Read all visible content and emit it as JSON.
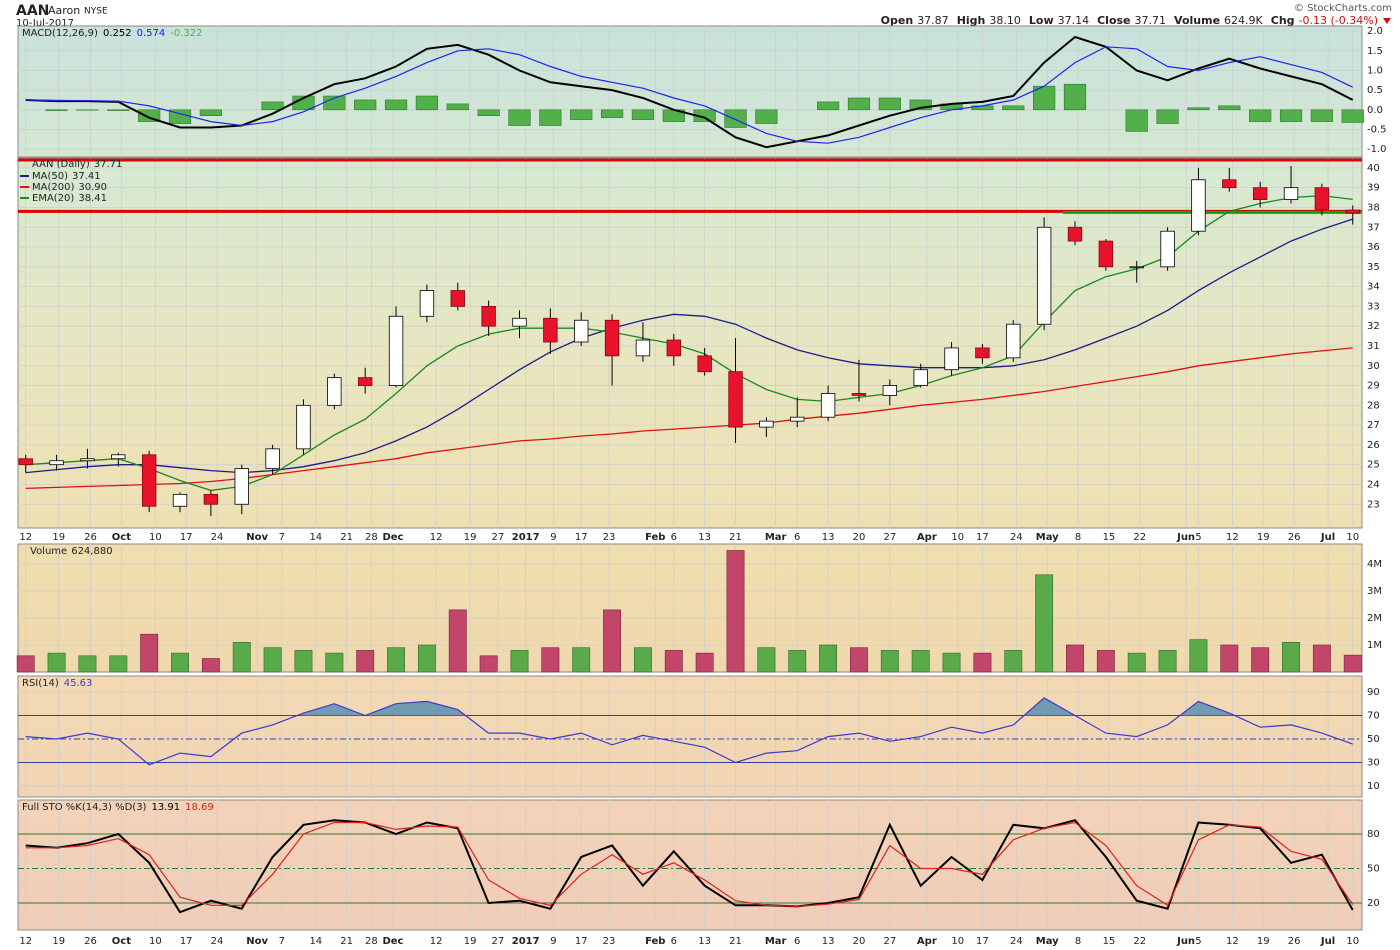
{
  "header": {
    "symbol": "AAN",
    "name": "Aaron",
    "exchange": "NYSE",
    "date": "10-Jul-2017",
    "source": "© StockCharts.com",
    "quote": [
      {
        "label": "Open",
        "value": "37.87"
      },
      {
        "label": "High",
        "value": "38.10"
      },
      {
        "label": "Low",
        "value": "37.14"
      },
      {
        "label": "Close",
        "value": "37.71"
      },
      {
        "label": "Volume",
        "value": "624.9K"
      },
      {
        "label": "Chg",
        "value": "-0.13 (-0.34%)"
      }
    ]
  },
  "x_axis": {
    "x": [
      0,
      1,
      2,
      3,
      4,
      5,
      6,
      7,
      8,
      9,
      10,
      11,
      12,
      13,
      14,
      15,
      16,
      17,
      18,
      19,
      20,
      21,
      22,
      23,
      24,
      25,
      26,
      27,
      28,
      29,
      30,
      31,
      32,
      33,
      34,
      35,
      36,
      37,
      38,
      39,
      40,
      41,
      42,
      43
    ],
    "xlim": [
      -0.25,
      43.3
    ],
    "xticks": [
      {
        "value": 0,
        "label": "12"
      },
      {
        "value": 1.07,
        "label": "19"
      },
      {
        "value": 2.1,
        "label": "26"
      },
      {
        "value": 3.1,
        "label": "Oct"
      },
      {
        "value": 4.2,
        "label": "10"
      },
      {
        "value": 5.2,
        "label": "17"
      },
      {
        "value": 6.2,
        "label": "24"
      },
      {
        "value": 7.5,
        "label": "Nov"
      },
      {
        "value": 8.3,
        "label": "7"
      },
      {
        "value": 9.4,
        "label": "14"
      },
      {
        "value": 10.4,
        "label": "21"
      },
      {
        "value": 11.2,
        "label": "28"
      },
      {
        "value": 11.9,
        "label": "Dec"
      },
      {
        "value": 13.3,
        "label": "12"
      },
      {
        "value": 14.4,
        "label": "19"
      },
      {
        "value": 15.3,
        "label": "27"
      },
      {
        "value": 16.2,
        "label": "2017"
      },
      {
        "value": 17.1,
        "label": "9"
      },
      {
        "value": 18.0,
        "label": "17"
      },
      {
        "value": 18.9,
        "label": "23"
      },
      {
        "value": 20.4,
        "label": "Feb"
      },
      {
        "value": 21.0,
        "label": "6"
      },
      {
        "value": 22.0,
        "label": "13"
      },
      {
        "value": 23.0,
        "label": "21"
      },
      {
        "value": 24.3,
        "label": "Mar"
      },
      {
        "value": 25.0,
        "label": "6"
      },
      {
        "value": 26.0,
        "label": "13"
      },
      {
        "value": 27.0,
        "label": "20"
      },
      {
        "value": 28.0,
        "label": "27"
      },
      {
        "value": 29.2,
        "label": "Apr"
      },
      {
        "value": 30.2,
        "label": "10"
      },
      {
        "value": 31.0,
        "label": "17"
      },
      {
        "value": 32.1,
        "label": "24"
      },
      {
        "value": 33.1,
        "label": "May"
      },
      {
        "value": 34.1,
        "label": "8"
      },
      {
        "value": 35.1,
        "label": "15"
      },
      {
        "value": 36.1,
        "label": "22"
      },
      {
        "value": 37.6,
        "label": "Jun"
      },
      {
        "value": 38.0,
        "label": "5"
      },
      {
        "value": 39.1,
        "label": "12"
      },
      {
        "value": 40.1,
        "label": "19"
      },
      {
        "value": 41.1,
        "label": "26"
      },
      {
        "value": 42.2,
        "label": "Jul"
      },
      {
        "value": 43.0,
        "label": "10"
      }
    ]
  },
  "chart_data": [
    {
      "type": "line",
      "title": "MACD(12,26,9)",
      "ylim": [
        -1.2,
        2.13
      ],
      "yticks": [
        {
          "value": -1,
          "label": "-1.0"
        },
        -0.5,
        {
          "value": 0,
          "label": "0.0"
        },
        0.5,
        {
          "value": 1,
          "label": "1.0"
        },
        1.5,
        {
          "value": 2,
          "label": "2.0"
        }
      ],
      "series": [
        {
          "color": "#000000",
          "values": [
            0.25,
            0.22,
            0.22,
            0.2,
            -0.2,
            -0.45,
            -0.45,
            -0.4,
            -0.1,
            0.3,
            0.65,
            0.8,
            1.1,
            1.55,
            1.65,
            1.4,
            1.0,
            0.7,
            0.6,
            0.5,
            0.3,
            0.0,
            -0.2,
            -0.7,
            -0.95,
            -0.8,
            -0.65,
            -0.4,
            -0.15,
            0.05,
            0.15,
            0.2,
            0.35,
            1.2,
            1.85,
            1.6,
            1.0,
            0.75,
            1.05,
            1.3,
            1.05,
            0.85,
            0.65,
            0.252
          ]
        },
        {
          "color": "#2222ee",
          "values": [
            0.25,
            0.24,
            0.23,
            0.22,
            0.1,
            -0.1,
            -0.3,
            -0.4,
            -0.3,
            -0.05,
            0.3,
            0.55,
            0.85,
            1.2,
            1.5,
            1.55,
            1.4,
            1.1,
            0.85,
            0.7,
            0.55,
            0.3,
            0.1,
            -0.25,
            -0.6,
            -0.8,
            -0.85,
            -0.7,
            -0.45,
            -0.2,
            0.0,
            0.1,
            0.25,
            0.6,
            1.2,
            1.6,
            1.55,
            1.1,
            1.0,
            1.2,
            1.35,
            1.15,
            0.95,
            0.574
          ]
        },
        {
          "color": "#52b04a",
          "style": "bar",
          "values": [
            0,
            -0.02,
            -0.01,
            -0.02,
            -0.3,
            -0.35,
            -0.15,
            0,
            0.2,
            0.35,
            0.35,
            0.25,
            0.25,
            0.35,
            0.15,
            -0.15,
            -0.4,
            -0.4,
            -0.25,
            -0.2,
            -0.25,
            -0.3,
            -0.3,
            -0.45,
            -0.35,
            0,
            0.2,
            0.3,
            0.3,
            0.25,
            0.15,
            0.1,
            0.1,
            0.6,
            0.65,
            0,
            -0.55,
            -0.35,
            0.05,
            0.1,
            -0.3,
            -0.3,
            -0.3,
            -0.322
          ]
        }
      ]
    },
    {
      "type": "candlestick",
      "title": "AAN (Daily)",
      "ylim": [
        21.8,
        40.5
      ],
      "yticks": [
        23,
        24,
        25,
        26,
        27,
        28,
        29,
        30,
        31,
        32,
        33,
        34,
        35,
        36,
        37,
        38,
        39,
        40
      ],
      "open": [
        25.3,
        25.0,
        25.2,
        25.3,
        25.5,
        22.9,
        23.5,
        23.0,
        24.8,
        25.8,
        28.0,
        29.4,
        29.0,
        32.5,
        33.8,
        33.0,
        32.0,
        32.4,
        31.2,
        32.3,
        30.5,
        31.3,
        30.5,
        29.7,
        26.9,
        27.2,
        27.4,
        28.6,
        28.5,
        29.0,
        29.8,
        30.9,
        30.4,
        32.1,
        37.0,
        36.3,
        35.0,
        35.0,
        36.8,
        39.4,
        39.0,
        38.4,
        39.0,
        37.87
      ],
      "high": [
        25.5,
        25.5,
        25.8,
        25.6,
        25.7,
        23.6,
        23.7,
        25.0,
        26.0,
        28.3,
        29.6,
        29.9,
        33.0,
        34.1,
        34.2,
        33.3,
        32.8,
        32.9,
        32.7,
        32.6,
        32.2,
        31.6,
        30.9,
        31.4,
        27.4,
        28.4,
        29.0,
        30.3,
        29.3,
        30.1,
        31.2,
        31.1,
        32.3,
        37.5,
        37.3,
        36.4,
        35.3,
        37.0,
        40.0,
        40.0,
        39.3,
        40.1,
        39.2,
        38.1
      ],
      "low": [
        24.6,
        24.7,
        24.8,
        24.9,
        22.6,
        22.6,
        22.4,
        22.5,
        24.5,
        25.5,
        27.8,
        28.6,
        28.9,
        32.2,
        32.8,
        31.5,
        31.4,
        30.6,
        31.0,
        29.0,
        30.2,
        30.0,
        29.5,
        26.1,
        26.4,
        26.9,
        27.2,
        28.2,
        28.0,
        28.9,
        29.5,
        30.1,
        30.2,
        31.8,
        36.1,
        34.8,
        34.2,
        34.8,
        36.6,
        38.8,
        38.0,
        38.2,
        37.6,
        37.14
      ],
      "close": [
        25.0,
        25.2,
        25.3,
        25.5,
        22.9,
        23.5,
        23.0,
        24.8,
        25.8,
        28.0,
        29.4,
        29.0,
        32.5,
        33.8,
        33.0,
        32.0,
        32.4,
        31.2,
        32.3,
        30.5,
        31.3,
        30.5,
        29.7,
        26.9,
        27.2,
        27.4,
        28.6,
        28.5,
        29.0,
        29.8,
        30.9,
        30.4,
        32.1,
        37.0,
        36.3,
        35.0,
        35.0,
        36.8,
        39.4,
        39.0,
        38.4,
        39.0,
        37.9,
        37.71
      ],
      "up_color": "#ffffff",
      "down_color": "#e8132b",
      "series": [
        {
          "name": "MA(50)",
          "color": "#1c1c8a",
          "values": [
            24.6,
            24.75,
            24.9,
            25.0,
            25.0,
            24.85,
            24.7,
            24.6,
            24.7,
            24.9,
            25.2,
            25.6,
            26.2,
            26.9,
            27.8,
            28.8,
            29.8,
            30.7,
            31.4,
            31.9,
            32.3,
            32.6,
            32.5,
            32.1,
            31.4,
            30.8,
            30.4,
            30.1,
            30.0,
            29.9,
            29.9,
            29.9,
            30.0,
            30.3,
            30.8,
            31.4,
            32.0,
            32.8,
            33.8,
            34.7,
            35.5,
            36.3,
            36.9,
            37.41
          ]
        },
        {
          "name": "MA(200)",
          "color": "#e01010",
          "legend_value": "30.90",
          "values": [
            23.8,
            23.85,
            23.9,
            23.95,
            24.0,
            24.05,
            24.15,
            24.3,
            24.5,
            24.7,
            24.9,
            25.1,
            25.3,
            25.6,
            25.8,
            26.0,
            26.2,
            26.3,
            26.45,
            26.55,
            26.7,
            26.8,
            26.9,
            27.0,
            27.1,
            27.3,
            27.45,
            27.6,
            27.8,
            28.0,
            28.15,
            28.3,
            28.5,
            28.7,
            28.95,
            29.2,
            29.45,
            29.7,
            30.0,
            30.2,
            30.4,
            30.6,
            30.75,
            30.9
          ]
        },
        {
          "name": "EMA(20)",
          "color": "#1a8a1a",
          "values": [
            25.0,
            25.1,
            25.2,
            25.3,
            24.8,
            24.2,
            23.7,
            23.9,
            24.5,
            25.5,
            26.5,
            27.3,
            28.6,
            30.0,
            31.0,
            31.6,
            31.9,
            31.9,
            31.9,
            31.7,
            31.4,
            31.1,
            30.6,
            29.6,
            28.8,
            28.3,
            28.2,
            28.4,
            28.6,
            29.0,
            29.5,
            29.9,
            30.5,
            32.2,
            33.8,
            34.5,
            34.9,
            35.5,
            36.8,
            37.8,
            38.2,
            38.5,
            38.6,
            38.41
          ]
        }
      ],
      "hlines": [
        {
          "value": 40.4,
          "color": "#e00000"
        },
        {
          "value": 37.8,
          "color": "#e00000"
        }
      ],
      "hsegments": [
        {
          "value": 37.75,
          "x": [
            33.6,
            43.3
          ],
          "color": "#1a9a1a"
        }
      ]
    },
    {
      "type": "bar",
      "title": "Volume",
      "legend_value": "624,880",
      "ylim": [
        0,
        4740000
      ],
      "yticks": [
        {
          "value": 1000000,
          "label": "1M"
        },
        {
          "value": 2000000,
          "label": "2M"
        },
        {
          "value": 3000000,
          "label": "3M"
        },
        {
          "value": 4000000,
          "label": "4M"
        }
      ],
      "values": [
        600000,
        700000,
        600000,
        600000,
        1400000,
        700000,
        500000,
        1100000,
        900000,
        800000,
        700000,
        800000,
        900000,
        1000000,
        2300000,
        600000,
        800000,
        900000,
        900000,
        2300000,
        900000,
        800000,
        700000,
        4500000,
        900000,
        800000,
        1000000,
        900000,
        800000,
        800000,
        700000,
        700000,
        800000,
        3600000,
        1000000,
        800000,
        700000,
        800000,
        1200000,
        1000000,
        900000,
        1100000,
        1000000,
        624880
      ],
      "up_color": "#5aaa4a",
      "down_color": "#c2456a"
    },
    {
      "type": "line",
      "title": "RSI(14)",
      "ylim": [
        0.6,
        103.6
      ],
      "yticks": [
        10,
        30,
        50,
        70,
        90
      ],
      "levels": [
        30,
        50,
        70
      ],
      "level_color": "#3a3aa6",
      "fill_color": "#5b8fb0",
      "series": [
        {
          "color": "#3a3ad0",
          "values": [
            52,
            50,
            55,
            50,
            28,
            38,
            35,
            55,
            62,
            72,
            80,
            70,
            80,
            82,
            75,
            55,
            55,
            50,
            55,
            45,
            53,
            48,
            43,
            30,
            38,
            40,
            52,
            55,
            48,
            52,
            60,
            55,
            62,
            85,
            70,
            55,
            52,
            62,
            82,
            72,
            60,
            62,
            55,
            45.63
          ]
        }
      ]
    },
    {
      "type": "line",
      "title": "Full STO %K(14,3) %D(3)",
      "ylim": [
        -3.5,
        109.6
      ],
      "yticks": [
        20,
        50,
        80
      ],
      "levels": [
        20,
        50,
        80
      ],
      "level_color": "#2a7a2a",
      "series": [
        {
          "color": "#000000",
          "values": [
            70,
            68,
            72,
            80,
            55,
            12,
            22,
            15,
            60,
            88,
            92,
            90,
            80,
            90,
            85,
            20,
            22,
            15,
            60,
            70,
            35,
            65,
            35,
            18,
            18,
            17,
            20,
            25,
            88,
            35,
            60,
            40,
            88,
            85,
            92,
            60,
            22,
            15,
            90,
            88,
            85,
            55,
            62,
            13.91
          ]
        },
        {
          "color": "#e02020",
          "values": [
            68,
            68,
            70,
            76,
            62,
            25,
            18,
            18,
            45,
            80,
            90,
            90,
            84,
            87,
            86,
            40,
            24,
            18,
            45,
            62,
            45,
            55,
            40,
            22,
            18,
            17,
            19,
            23,
            70,
            50,
            50,
            45,
            75,
            85,
            90,
            70,
            35,
            18,
            75,
            88,
            86,
            65,
            58,
            18.69
          ]
        }
      ]
    }
  ]
}
